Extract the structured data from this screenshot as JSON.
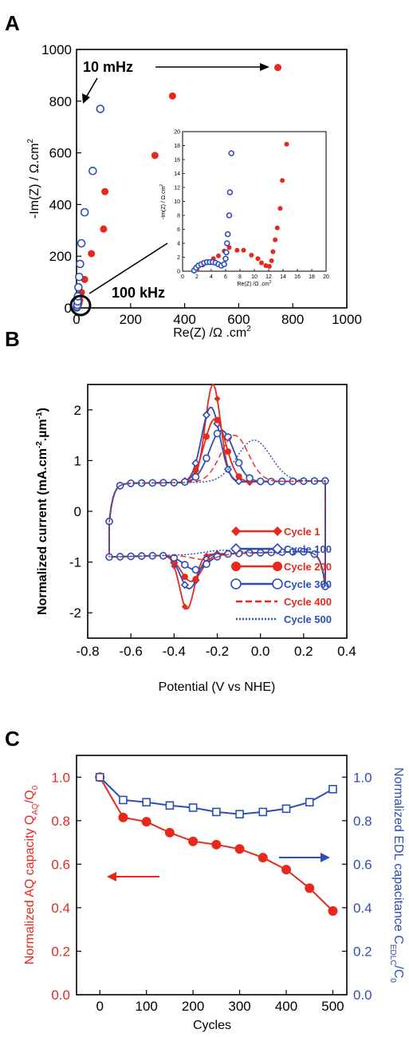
{
  "colors": {
    "red": "#e8281c",
    "blue": "#2b4eb8",
    "light_red": "#f08c82",
    "light_blue": "#6f8be0"
  },
  "chart_data": [
    {
      "panel": "A",
      "type": "scatter",
      "xlabel": "Re(Z) /Ω .cm",
      "xlabel_sup": "2",
      "ylabel": "-Im(Z) / Ω.cm",
      "ylabel_sup": "2",
      "xlim": [
        0,
        1000
      ],
      "ylim": [
        0,
        1000
      ],
      "xticks": [
        "0",
        "200",
        "400",
        "600",
        "800",
        "1000"
      ],
      "yticks": [
        "0",
        "200",
        "400",
        "600",
        "800",
        "1000"
      ],
      "annotations": [
        "10 mHz",
        "100 kHz"
      ],
      "series": [
        {
          "color": "red",
          "marker": "filled-circle",
          "points": [
            [
              2,
              2
            ],
            [
              4,
              5
            ],
            [
              6,
              10
            ],
            [
              9,
              18
            ],
            [
              12,
              30
            ],
            [
              18,
              60
            ],
            [
              30,
              110
            ],
            [
              55,
              210
            ],
            [
              100,
              305
            ],
            [
              105,
              450
            ],
            [
              290,
              590
            ],
            [
              355,
              820
            ],
            [
              745,
              930
            ]
          ]
        },
        {
          "color": "blue",
          "marker": "open-circle",
          "points": [
            [
              1,
              2
            ],
            [
              2,
              5
            ],
            [
              3,
              12
            ],
            [
              4,
              25
            ],
            [
              5,
              45
            ],
            [
              7,
              80
            ],
            [
              10,
              120
            ],
            [
              13,
              170
            ],
            [
              18,
              250
            ],
            [
              30,
              370
            ],
            [
              60,
              530
            ],
            [
              88,
              770
            ]
          ]
        }
      ],
      "inset": {
        "xlabel": "Re(Z) /Ω .cm",
        "xlabel_sup": "2",
        "ylabel": "-Im(Z) / Ω.cm",
        "ylabel_sup": "2",
        "xlim": [
          0,
          20
        ],
        "ylim": [
          0,
          20
        ],
        "xticks": [
          "0",
          "2",
          "4",
          "6",
          "8",
          "10",
          "12",
          "14",
          "16",
          "18",
          "20"
        ],
        "yticks": [
          "0",
          "2",
          "4",
          "6",
          "8",
          "10",
          "12",
          "14",
          "16",
          "18",
          "20"
        ],
        "series": [
          {
            "color": "red",
            "marker": "filled-circle",
            "points": [
              [
                2,
                0.3
              ],
              [
                2.8,
                0.9
              ],
              [
                3.5,
                1.3
              ],
              [
                4.3,
                1.8
              ],
              [
                5.0,
                2.2
              ],
              [
                5.8,
                2.9
              ],
              [
                6.5,
                3.4
              ],
              [
                7.6,
                3.0
              ],
              [
                8.5,
                3.0
              ],
              [
                9.6,
                2.3
              ],
              [
                10.5,
                1.8
              ],
              [
                11.0,
                1.2
              ],
              [
                11.6,
                0.8
              ],
              [
                12.1,
                0.7
              ],
              [
                12.4,
                1.5
              ],
              [
                12.6,
                2.8
              ],
              [
                12.9,
                4.5
              ],
              [
                13.2,
                6.2
              ],
              [
                13.6,
                9.0
              ],
              [
                13.9,
                13.0
              ],
              [
                14.5,
                18.2
              ]
            ]
          },
          {
            "color": "blue",
            "marker": "open-circle",
            "points": [
              [
                1.6,
                0.1
              ],
              [
                1.9,
                0.5
              ],
              [
                2.2,
                0.8
              ],
              [
                2.6,
                1.0
              ],
              [
                3.0,
                1.2
              ],
              [
                3.4,
                1.3
              ],
              [
                3.8,
                1.3
              ],
              [
                4.2,
                1.3
              ],
              [
                4.6,
                1.2
              ],
              [
                5.0,
                1.0
              ],
              [
                5.4,
                0.8
              ],
              [
                5.8,
                1.0
              ],
              [
                6.0,
                1.8
              ],
              [
                6.1,
                2.7
              ],
              [
                6.2,
                4.0
              ],
              [
                6.3,
                5.3
              ],
              [
                6.5,
                8.0
              ],
              [
                6.6,
                11.3
              ],
              [
                6.8,
                16.9
              ]
            ]
          }
        ]
      }
    },
    {
      "panel": "B",
      "type": "line",
      "xlabel": "Potential (V vs NHE)",
      "ylabel": "Normalized current (mA.cm",
      "ylabel_parts": [
        "-2",
        ".µm",
        "-1",
        ")"
      ],
      "xlim": [
        -0.8,
        0.4
      ],
      "ylim": [
        -2.5,
        2.5
      ],
      "xticks": [
        "-0.8",
        "-0.6",
        "-0.4",
        "-0.2",
        "0.0",
        "0.2",
        "0.4"
      ],
      "yticks": [
        "-2",
        "-1",
        "0",
        "1",
        "2"
      ],
      "legend_position": "bottom-right",
      "series": [
        {
          "name": "Cycle 1",
          "color": "red",
          "style": "solid",
          "marker": "filled-diamond",
          "peak_E": -0.22,
          "peak_I": 1.93,
          "rpeak_E": -0.34,
          "rpeak_I": -1.92,
          "width": 0.05
        },
        {
          "name": "Cycle 100",
          "color": "blue",
          "style": "solid",
          "marker": "open-diamond",
          "peak_E": -0.23,
          "peak_I": 1.48,
          "rpeak_E": -0.33,
          "rpeak_I": -1.52,
          "width": 0.06
        },
        {
          "name": "Cycle 200",
          "color": "red",
          "style": "solid",
          "marker": "filled-circle",
          "peak_E": -0.21,
          "peak_I": 1.25,
          "rpeak_E": -0.32,
          "rpeak_I": -1.38,
          "width": 0.07
        },
        {
          "name": "Cycle 300",
          "color": "blue",
          "style": "solid",
          "marker": "open-circle",
          "peak_E": -0.18,
          "peak_I": 1.02,
          "rpeak_E": -0.3,
          "rpeak_I": -1.15,
          "width": 0.08
        },
        {
          "name": "Cycle 400",
          "color": "red",
          "style": "dashed",
          "marker": "none",
          "peak_E": -0.12,
          "peak_I": 0.92,
          "rpeak_E": -0.26,
          "rpeak_I": -0.95,
          "width": 0.09
        },
        {
          "name": "Cycle 500",
          "color": "blue",
          "style": "dotted",
          "marker": "none",
          "peak_E": -0.03,
          "peak_I": 0.82,
          "rpeak_E": -0.18,
          "rpeak_I": -0.78,
          "width": 0.11
        }
      ]
    },
    {
      "panel": "C",
      "type": "line",
      "xlabel": "Cycles",
      "ylabel_left": "Normalized AQ capacity Q",
      "ylabel_left_parts": [
        "AQ",
        "/Q",
        "0"
      ],
      "ylabel_right": "Normalized EDL capacitance C",
      "ylabel_right_parts": [
        "EDLC",
        "/C",
        "0"
      ],
      "xlim": [
        -50,
        530
      ],
      "ylim": [
        0,
        1.1
      ],
      "xticks": [
        "0",
        "100",
        "200",
        "300",
        "400",
        "500"
      ],
      "yticks": [
        "0.0",
        "0.2",
        "0.4",
        "0.6",
        "0.8",
        "1.0"
      ],
      "series": [
        {
          "axis": "left",
          "color": "red",
          "marker": "filled-circle",
          "x": [
            0,
            50,
            100,
            150,
            200,
            250,
            300,
            350,
            400,
            450,
            500
          ],
          "y": [
            1.0,
            0.815,
            0.795,
            0.745,
            0.705,
            0.69,
            0.67,
            0.63,
            0.575,
            0.49,
            0.385
          ]
        },
        {
          "axis": "right",
          "color": "blue",
          "marker": "open-square",
          "x": [
            0,
            50,
            100,
            150,
            200,
            250,
            300,
            350,
            400,
            450,
            500
          ],
          "y": [
            1.0,
            0.895,
            0.885,
            0.87,
            0.86,
            0.84,
            0.83,
            0.84,
            0.855,
            0.885,
            0.945
          ]
        }
      ]
    }
  ],
  "labels": {
    "panel_a": "A",
    "panel_b": "B",
    "panel_c": "C"
  }
}
